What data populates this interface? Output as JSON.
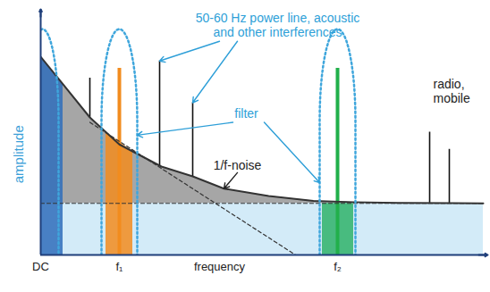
{
  "chart_data": {
    "type": "area",
    "xlabel": "frequency",
    "ylabel": "amplitude",
    "xlim": [
      0,
      100
    ],
    "ylim": [
      0,
      100
    ],
    "xticks": [
      {
        "value": 0,
        "label": "DC"
      },
      {
        "value": 17.6,
        "label": "f₁"
      },
      {
        "value": 66.4,
        "label": "f₂"
      }
    ],
    "yticks": [],
    "tick_labels": "x",
    "grid": false,
    "series": [
      {
        "name": "1/f-noise",
        "type": "area",
        "color": "#a6a6a6",
        "line_style": "solid",
        "x": [
          0,
          5,
          11,
          17.6,
          27,
          34,
          41,
          51,
          61,
          70,
          80,
          99
        ],
        "values": [
          80.7,
          69.5,
          56,
          45,
          36,
          32,
          27,
          24,
          22,
          21.5,
          21.2,
          21
        ]
      },
      {
        "type": "area",
        "color": "#d3ebf8",
        "line_style": "dashed",
        "x": [
          0,
          99
        ],
        "values": [
          21,
          21
        ]
      },
      {
        "type": "line",
        "color": "#333333",
        "line_style": "dashed",
        "x": [
          11,
          57
        ],
        "values": [
          54,
          0
        ]
      },
      {
        "type": "rule",
        "color": "#111111",
        "line_style": "solid",
        "x": [
          11,
          26.6,
          34,
          87,
          91.4
        ],
        "values": [
          72,
          79,
          62,
          50,
          43
        ]
      },
      {
        "type": "rule",
        "color": "#f28c1e",
        "line_style": "bold",
        "x": [
          17.6
        ],
        "values": [
          76
        ]
      },
      {
        "type": "rule",
        "color": "#22b04b",
        "line_style": "bold",
        "x": [
          66.4
        ],
        "values": [
          76
        ]
      }
    ],
    "bands": [
      {
        "x": [
          0,
          5
        ],
        "top": [
          80.7,
          69.5
        ],
        "color": "#2f6dbb"
      },
      {
        "x": [
          14.6,
          20.6
        ],
        "top": [
          50,
          42
        ],
        "color": "#f28c1e"
      },
      {
        "x": [
          63,
          70
        ],
        "top": [
          21,
          21
        ],
        "color": "#2fb36a"
      }
    ],
    "filters": [
      {
        "center": 0.4,
        "halfwidth": 3.6,
        "height": 92,
        "color": "#3fa6dc"
      },
      {
        "center": 17.6,
        "halfwidth": 4,
        "height": 92,
        "color": "#3fa6dc"
      },
      {
        "center": 66.4,
        "halfwidth": 4,
        "height": 92,
        "color": "#3fa6dc"
      }
    ],
    "annotations": [
      {
        "text": "50-60 Hz power line, acoustic\nand other interferences",
        "color": "#2e9fd8"
      },
      {
        "text": "filter",
        "color": "#2e9fd8"
      },
      {
        "text": "1/f-noise",
        "color": "#222222"
      },
      {
        "text": "radio,\nmobile",
        "color": "#222222"
      }
    ]
  }
}
